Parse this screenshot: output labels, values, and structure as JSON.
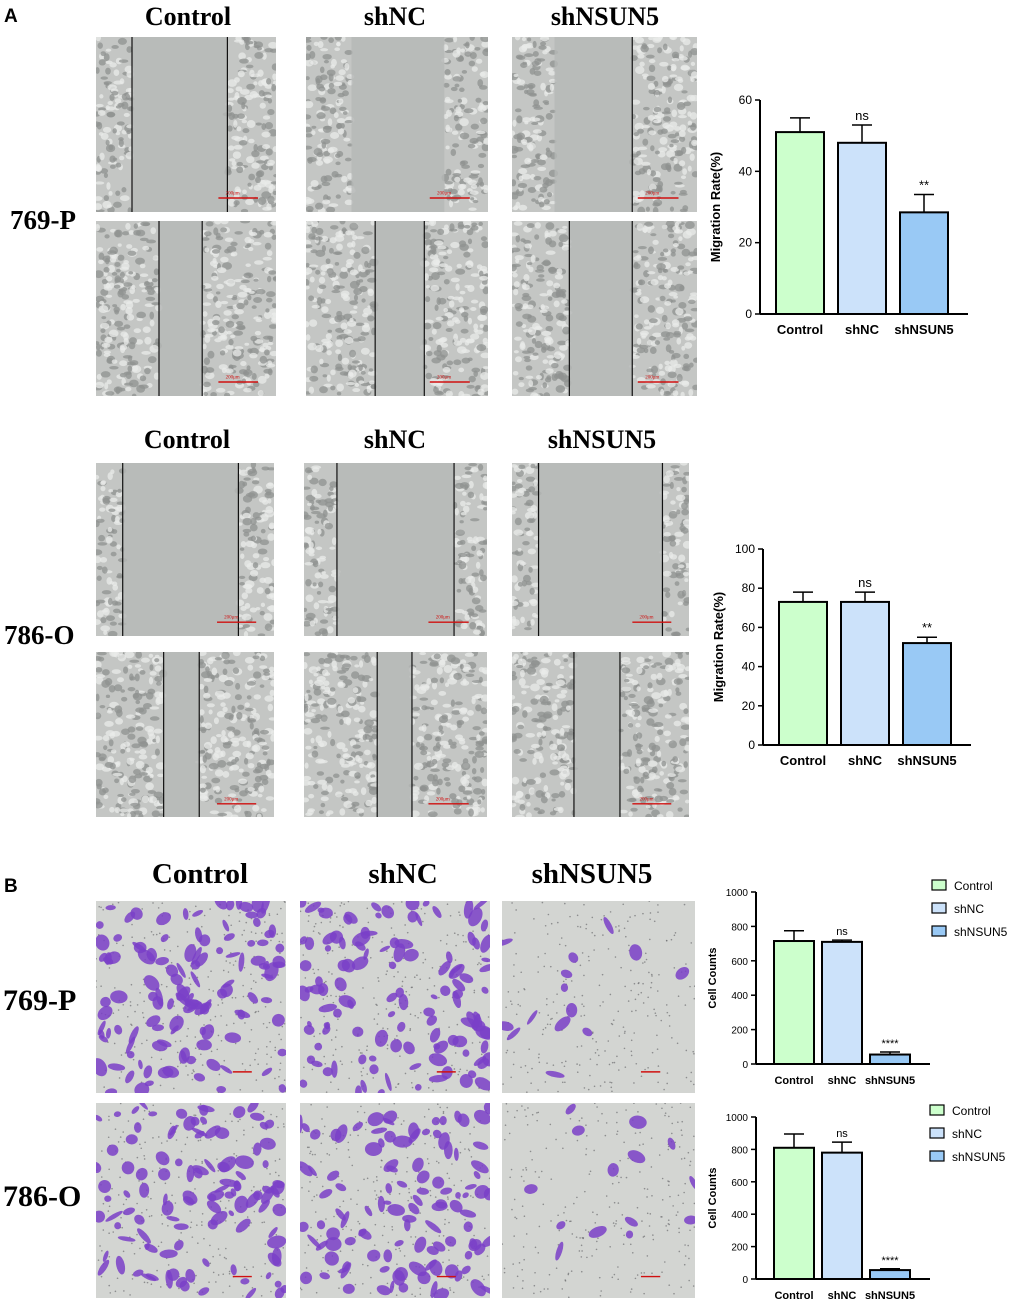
{
  "panel_a": {
    "letter": "A",
    "col_labels_769": [
      "Control",
      "shNC",
      "shNSUN5"
    ],
    "col_labels_786": [
      "Control",
      "shNC",
      "shNSUN5"
    ],
    "row_label_769": "769-P",
    "row_label_786": "786-O",
    "scale_text": "200μm"
  },
  "panel_b": {
    "letter": "B",
    "col_labels": [
      "Control",
      "shNC",
      "shNSUN5"
    ],
    "row_label_769": "769-P",
    "row_label_786": "786-O"
  },
  "colors": {
    "control": "#ccffcc",
    "shNC": "#cce2fa",
    "shNSUN5": "#99c9f5",
    "crystal_violet": "#7a3fc8",
    "wound_field": "#b9bcba",
    "scale_red": "#d01010"
  },
  "chart_data": [
    {
      "type": "bar",
      "categories": [
        "Control",
        "shNC",
        "shNSUN5"
      ],
      "values": [
        51,
        48,
        28.5
      ],
      "errors": [
        4,
        5,
        5
      ],
      "annotations": [
        "",
        "ns",
        "**"
      ],
      "ylabel": "Migration Rate(%)",
      "ylim": [
        0,
        60
      ],
      "yticks": [
        0,
        20,
        40,
        60
      ],
      "legend": false
    },
    {
      "type": "bar",
      "categories": [
        "Control",
        "shNC",
        "shNSUN5"
      ],
      "values": [
        73,
        73,
        52
      ],
      "errors": [
        5,
        5,
        3
      ],
      "annotations": [
        "",
        "ns",
        "**"
      ],
      "ylabel": "Migration Rate(%)",
      "ylim": [
        0,
        100
      ],
      "yticks": [
        0,
        20,
        40,
        60,
        80,
        100
      ],
      "legend": false
    },
    {
      "type": "bar",
      "categories": [
        "Control",
        "shNC",
        "shNSUN5"
      ],
      "values": [
        715,
        710,
        55
      ],
      "errors": [
        60,
        10,
        15
      ],
      "annotations": [
        "",
        "ns",
        "****"
      ],
      "ylabel": "Cell Counts",
      "ylim": [
        0,
        1000
      ],
      "yticks": [
        0,
        200,
        400,
        600,
        800,
        1000
      ],
      "legend": true,
      "legend_items": [
        "Control",
        "shNC",
        "shNSUN5"
      ]
    },
    {
      "type": "bar",
      "categories": [
        "Control",
        "shNC",
        "shNSUN5"
      ],
      "values": [
        810,
        780,
        55
      ],
      "errors": [
        85,
        65,
        8
      ],
      "annotations": [
        "",
        "ns",
        "****"
      ],
      "ylabel": "Cell Counts",
      "ylim": [
        0,
        1000
      ],
      "yticks": [
        0,
        200,
        400,
        600,
        800,
        1000
      ],
      "legend": true,
      "legend_items": [
        "Control",
        "shNC",
        "shNSUN5"
      ]
    }
  ]
}
